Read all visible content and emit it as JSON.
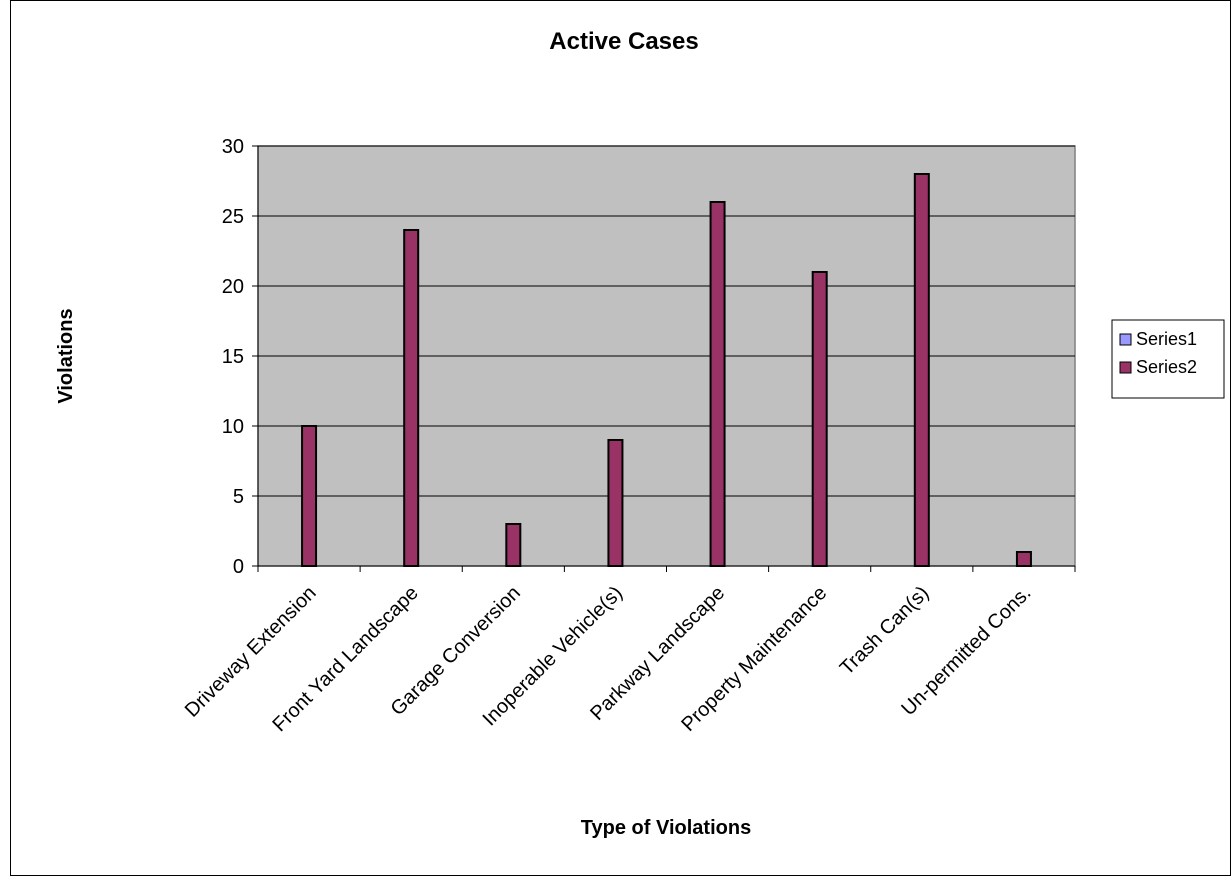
{
  "chart_data": {
    "type": "bar",
    "title": "Active Cases",
    "xlabel": "Type of Violations",
    "ylabel": "Violations",
    "categories": [
      "Driveway Extension",
      "Front Yard Landscape",
      "Garage Conversion",
      "Inoperable Vehicle(s)",
      "Parkway Landscape",
      "Property Maintenance",
      "Trash Can(s)",
      "Un-permitted Cons."
    ],
    "series": [
      {
        "name": "Series1",
        "values": [
          0,
          0,
          0,
          0,
          0,
          0,
          0,
          0
        ],
        "color": "#9999ff"
      },
      {
        "name": "Series2",
        "values": [
          10,
          24,
          3,
          9,
          26,
          21,
          28,
          1
        ],
        "color": "#993366"
      }
    ],
    "ylim": [
      0,
      30
    ],
    "yticks": [
      0,
      5,
      10,
      15,
      20,
      25,
      30
    ],
    "grid": true,
    "legend_position": "right",
    "plot_background": "#c0c0c0"
  }
}
